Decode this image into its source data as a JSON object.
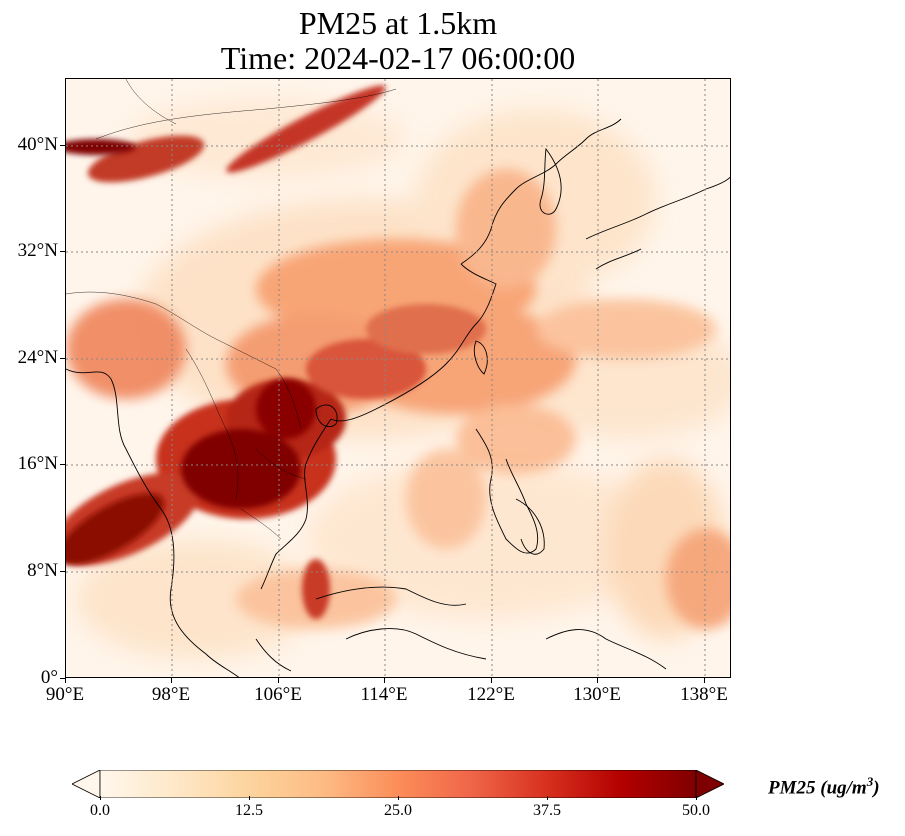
{
  "title": {
    "line1": "PM25 at 1.5km",
    "line2": "Time: 2024-02-17 06:00:00"
  },
  "map": {
    "projection": "PlateCarree",
    "lon_range": [
      90,
      140
    ],
    "lat_range": [
      0,
      45
    ],
    "gridlines": "dotted gray",
    "coastlines": true,
    "country_borders": true,
    "colormap": "OrRd",
    "hotspots": [
      "Indochina / northern Myanmar-Laos-Vietnam (very high, dark red)",
      "Bay of Bengal coast (high)",
      "Inner Mongolia / northwest band near 40°N (dark red)",
      "Central-eastern China (moderate to high)"
    ]
  },
  "axes": {
    "lat_ticks": [
      "0°",
      "8°N",
      "16°N",
      "24°N",
      "32°N",
      "40°N"
    ],
    "lon_ticks": [
      "90°E",
      "98°E",
      "106°E",
      "114°E",
      "122°E",
      "130°E",
      "138°E"
    ]
  },
  "colorbar": {
    "ticks": [
      "0.0",
      "12.5",
      "25.0",
      "37.5",
      "50.0"
    ],
    "min": 0.0,
    "max": 50.0,
    "extend": "both",
    "colors": [
      "#fff7ec",
      "#fee8c8",
      "#fdd49e",
      "#fdbb84",
      "#fc8d59",
      "#ef6548",
      "#d7301f",
      "#b30000",
      "#7f0000"
    ],
    "label_main": "PM25 (ug/m",
    "label_sup": "3",
    "label_end": ")"
  }
}
